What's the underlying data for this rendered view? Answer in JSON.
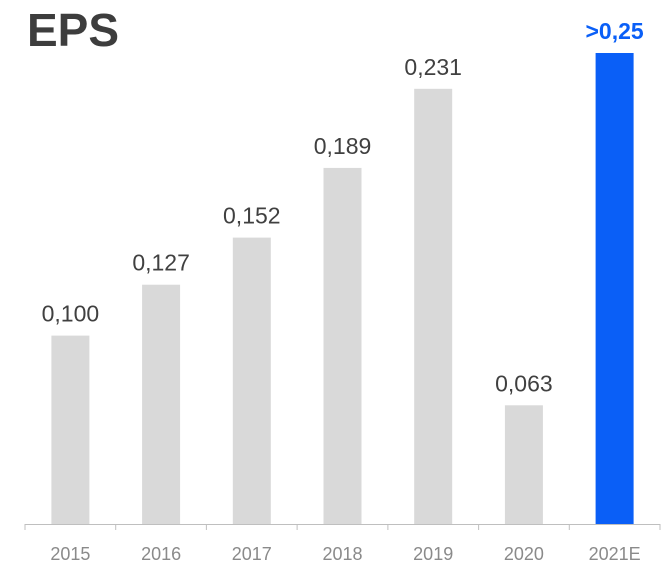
{
  "chart_data": {
    "type": "bar",
    "title": "EPS",
    "categories": [
      "2015",
      "2016",
      "2017",
      "2018",
      "2019",
      "2020",
      "2021E"
    ],
    "values": [
      0.1,
      0.127,
      0.152,
      0.189,
      0.231,
      0.063,
      0.25
    ],
    "value_labels": [
      "0,100",
      "0,127",
      "0,152",
      "0,189",
      "0,231",
      "0,063",
      ">0,25"
    ],
    "highlight_index": 6,
    "xlabel": "",
    "ylabel": "",
    "ylim": [
      0,
      0.25
    ],
    "grid": false,
    "colors": {
      "bar": "#d9d9d9",
      "highlight": "#0a5ff7",
      "axis": "#bfbfbf",
      "title": "#3d3d3d"
    }
  }
}
